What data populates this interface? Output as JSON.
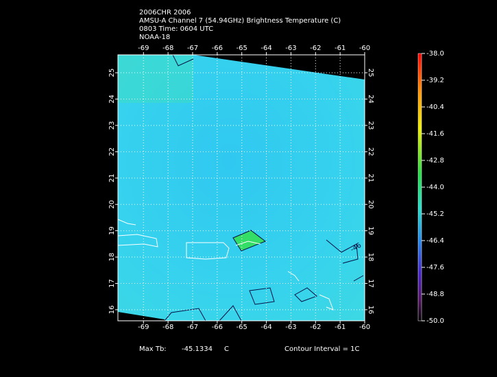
{
  "header": {
    "lines": [
      "2006CHR 2006",
      "AMSU-A Channel 7 (54.94GHz) Brightness Temperature (C)",
      "0803 Time: 0604 UTC",
      "NOAA-18"
    ]
  },
  "map": {
    "xlim": [
      -70.04,
      -60.0
    ],
    "ylim": [
      15.58,
      25.68
    ],
    "lon_ticks": [
      -69,
      -68,
      -67,
      -66,
      -65,
      -64,
      -63,
      -62,
      -61,
      -60
    ],
    "lat_ticks": [
      16,
      17,
      18,
      19,
      20,
      21,
      22,
      23,
      24,
      25
    ],
    "contour_label": "-46"
  },
  "colorbar": {
    "lim": [
      -50.0,
      -38.0
    ],
    "ticks": [
      {
        "value": -38.0,
        "label": "-38.0"
      },
      {
        "value": -39.2,
        "label": "-39.2"
      },
      {
        "value": -40.4,
        "label": "-40.4"
      },
      {
        "value": -41.6,
        "label": "-41.6"
      },
      {
        "value": -42.8,
        "label": "-42.8"
      },
      {
        "value": -44.0,
        "label": "-44.0"
      },
      {
        "value": -45.2,
        "label": "-45.2"
      },
      {
        "value": -46.4,
        "label": "-46.4"
      },
      {
        "value": -47.6,
        "label": "-47.6"
      },
      {
        "value": -48.8,
        "label": "-48.8"
      },
      {
        "value": -50.0,
        "label": "-50.0"
      }
    ]
  },
  "footer": {
    "max_label": "Max Tb:",
    "max_value": "-45.1334",
    "unit": "C",
    "contour_interval": "Contour Interval = 1C"
  }
}
